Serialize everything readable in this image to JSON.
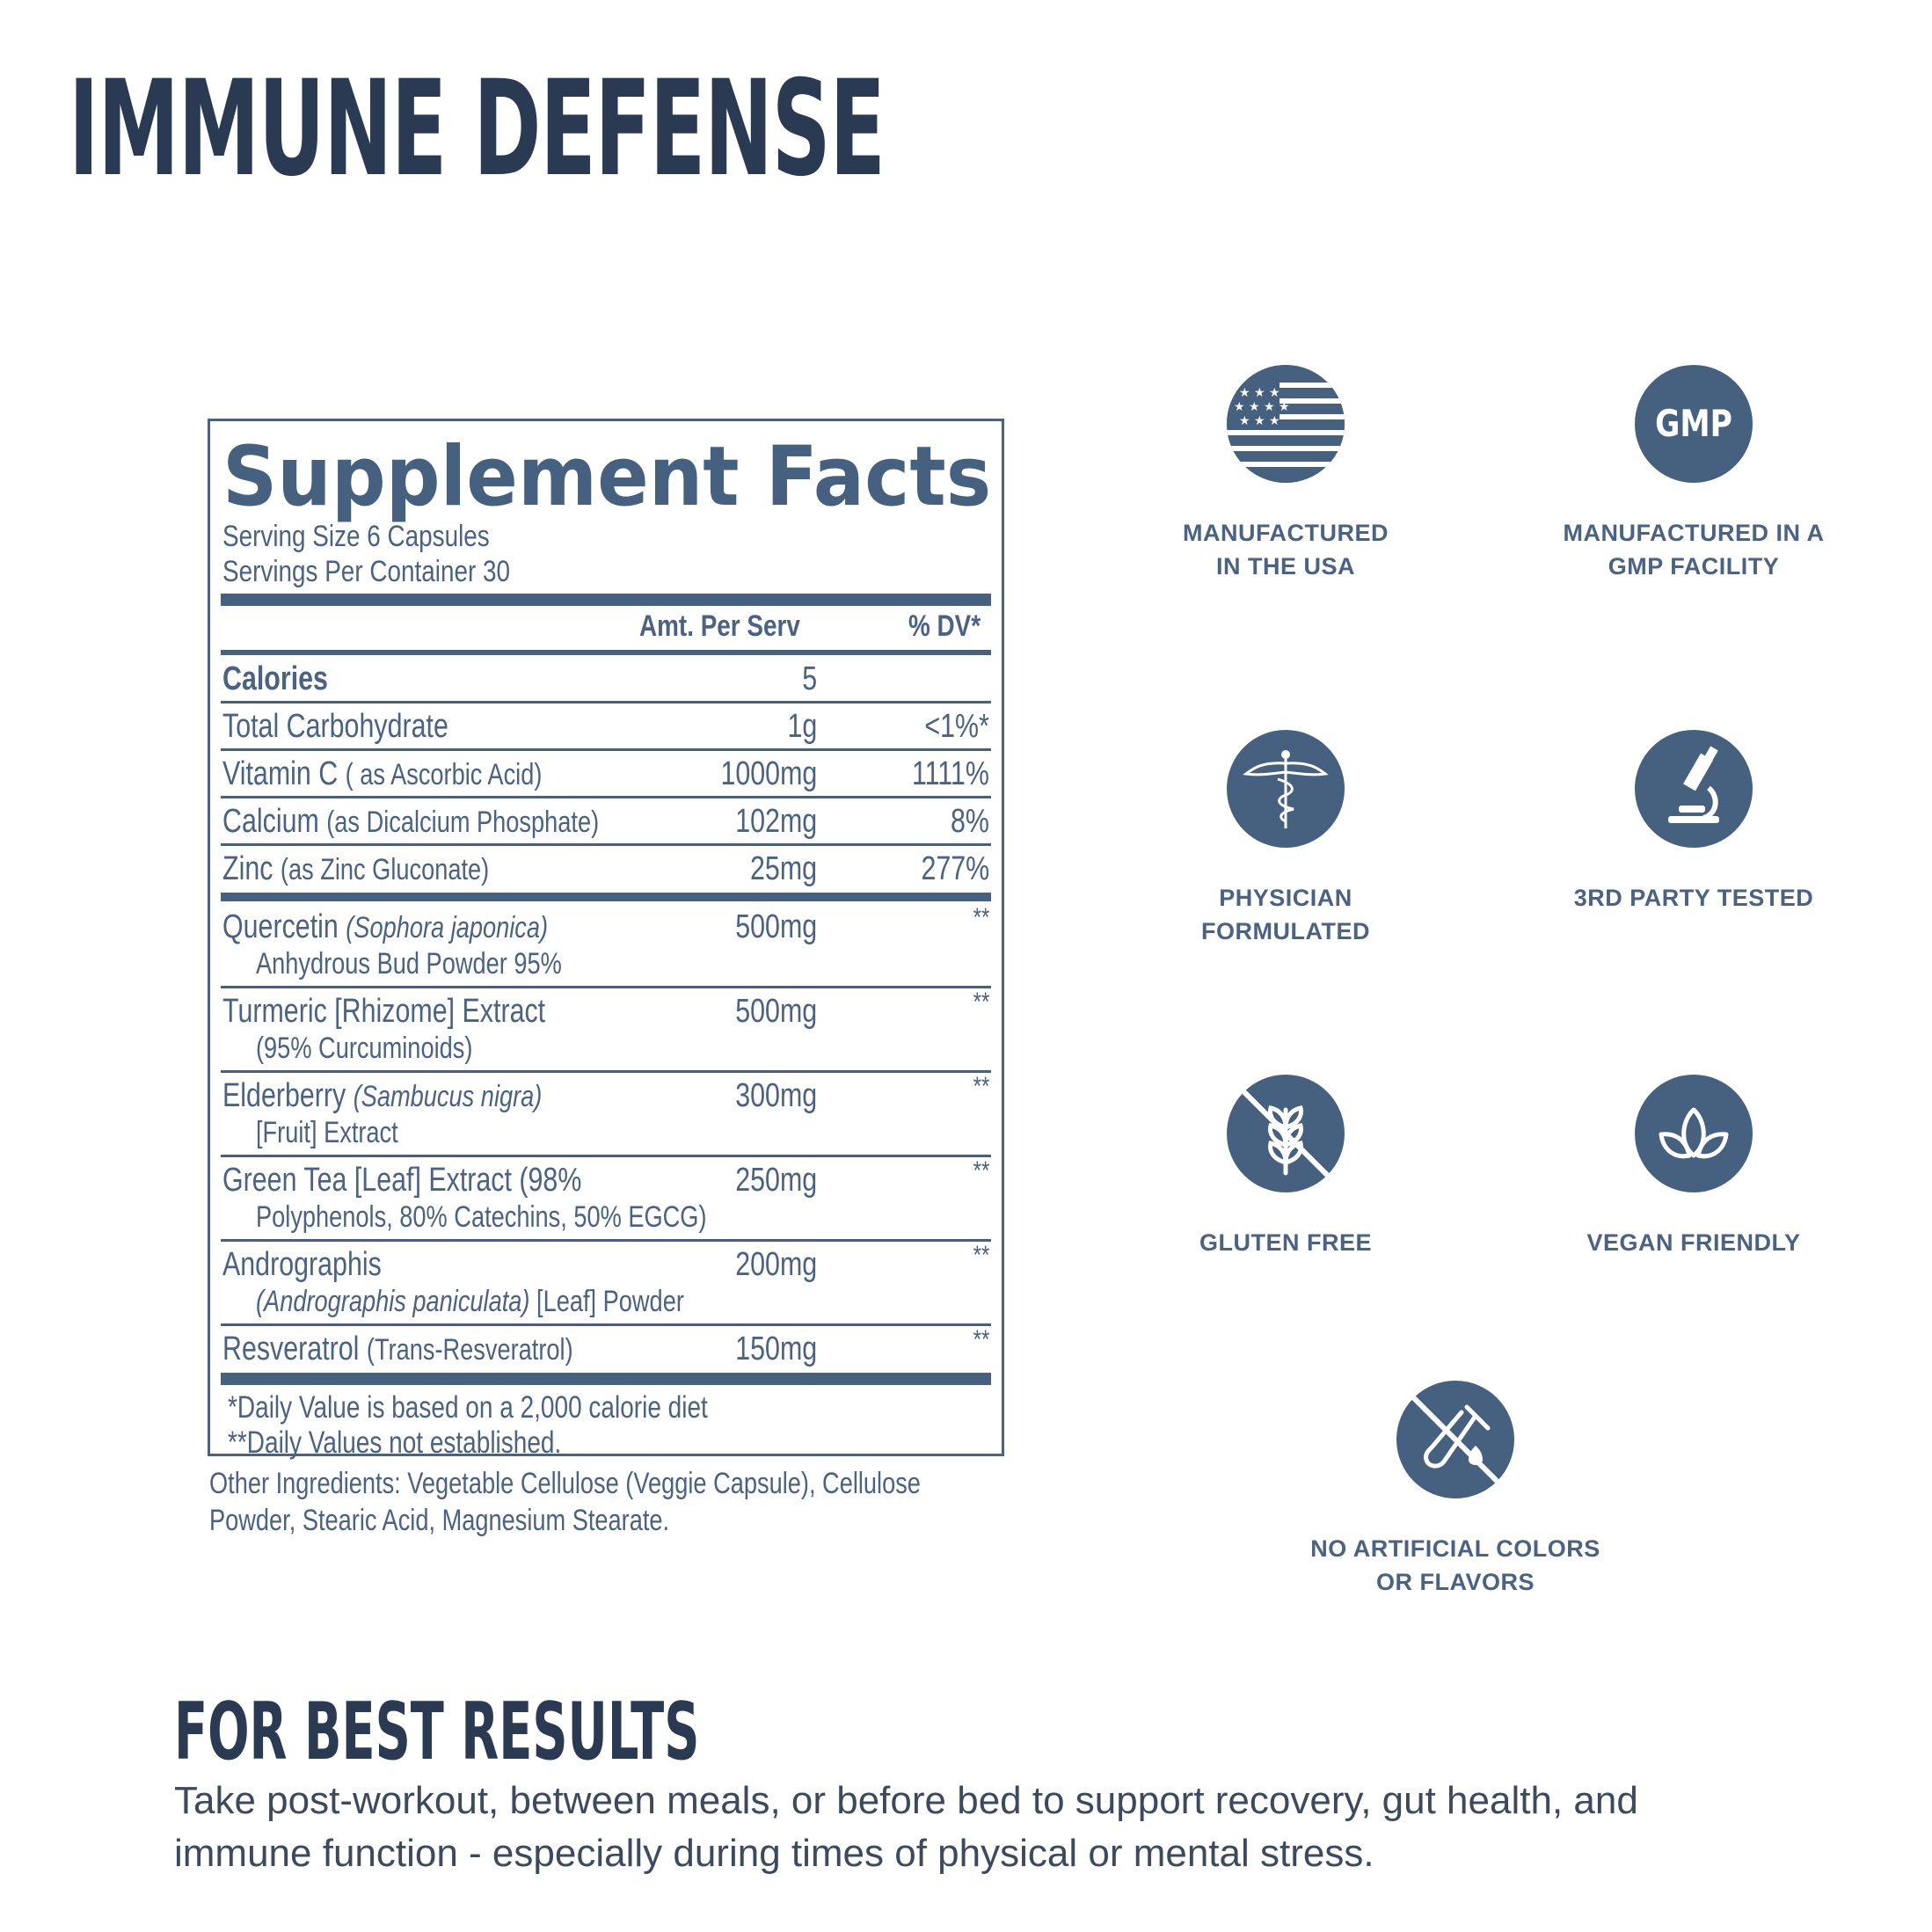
{
  "title": "IMMUNE DEFENSE",
  "facts": {
    "title": "Supplement Facts",
    "serving_size": "Serving Size 6 Capsules",
    "servings_per_container": "Servings Per Container 30",
    "header_amount": "Amt. Per Serv",
    "header_dv": "% DV*",
    "rows": [
      {
        "name": "Calories",
        "detail": "",
        "amount": "5",
        "dv": ""
      },
      {
        "name": "Total Carbohydrate",
        "detail": "",
        "amount": "1g",
        "dv": "<1%*"
      },
      {
        "name": "Vitamin C",
        "detail": "( as Ascorbic Acid)",
        "amount": "1000mg",
        "dv": "1111%"
      },
      {
        "name": "Calcium",
        "detail": "(as Dicalcium Phosphate)",
        "amount": "102mg",
        "dv": "8%"
      },
      {
        "name": "Zinc",
        "detail": "(as Zinc Gluconate)",
        "amount": "25mg",
        "dv": "277%"
      }
    ],
    "blend": [
      {
        "name": "Quercetin",
        "name_italic": "(Sophora japonica)",
        "line2": "Anhydrous Bud Powder 95%",
        "amount": "500mg",
        "dv": "**"
      },
      {
        "name": "Turmeric [Rhizome] Extract",
        "name_italic": "",
        "line2": "(95% Curcuminoids)",
        "amount": "500mg",
        "dv": "**"
      },
      {
        "name": "Elderberry",
        "name_italic": "(Sambucus nigra)",
        "line2": "[Fruit] Extract",
        "amount": "300mg",
        "dv": "**"
      },
      {
        "name": "Green Tea [Leaf] Extract (98%",
        "name_italic": "",
        "line2": "Polyphenols, 80% Catechins, 50% EGCG)",
        "amount": "250mg",
        "dv": "**"
      },
      {
        "name": "Andrographis",
        "name_italic": "",
        "line2_italic": "(Andrographis paniculata)",
        "line2": "[Leaf] Powder",
        "amount": "200mg",
        "dv": "**"
      },
      {
        "name": "Resveratrol",
        "detail": "(Trans-Resveratrol)",
        "amount": "150mg",
        "dv": "**"
      }
    ],
    "footnote1": "*Daily Value is based on a 2,000 calorie diet",
    "footnote2": "**Daily Values not established.",
    "other_ingredients": "Other Ingredients: Vegetable Cellulose (Veggie Capsule), Cellulose Powder, Stearic Acid, Magnesium Stearate."
  },
  "badges": {
    "usa": {
      "line1": "MANUFACTURED",
      "line2": "IN THE USA",
      "icon": "usa-flag-icon"
    },
    "gmp": {
      "line1": "MANUFACTURED IN A",
      "line2": "GMP FACILITY",
      "icon_text": "GMP",
      "icon": "gmp-icon"
    },
    "physician": {
      "line1": "PHYSICIAN",
      "line2": "FORMULATED",
      "icon": "caduceus-icon"
    },
    "tested": {
      "line1": "3RD PARTY TESTED",
      "icon": "microscope-icon"
    },
    "gluten": {
      "line1": "GLUTEN FREE",
      "icon": "no-wheat-icon"
    },
    "vegan": {
      "line1": "VEGAN FRIENDLY",
      "icon": "leaf-icon"
    },
    "artificial": {
      "line1": "NO ARTIFICIAL COLORS",
      "line2": "OR FLAVORS",
      "icon": "no-test-tube-icon"
    }
  },
  "best_results": {
    "title": "FOR BEST RESULTS",
    "text": "Take post-workout, between meals, or before bed to support recovery, gut health, and immune function - especially during times of physical or mental stress."
  },
  "colors": {
    "primary": "#46607f",
    "title": "#2a3a52"
  }
}
